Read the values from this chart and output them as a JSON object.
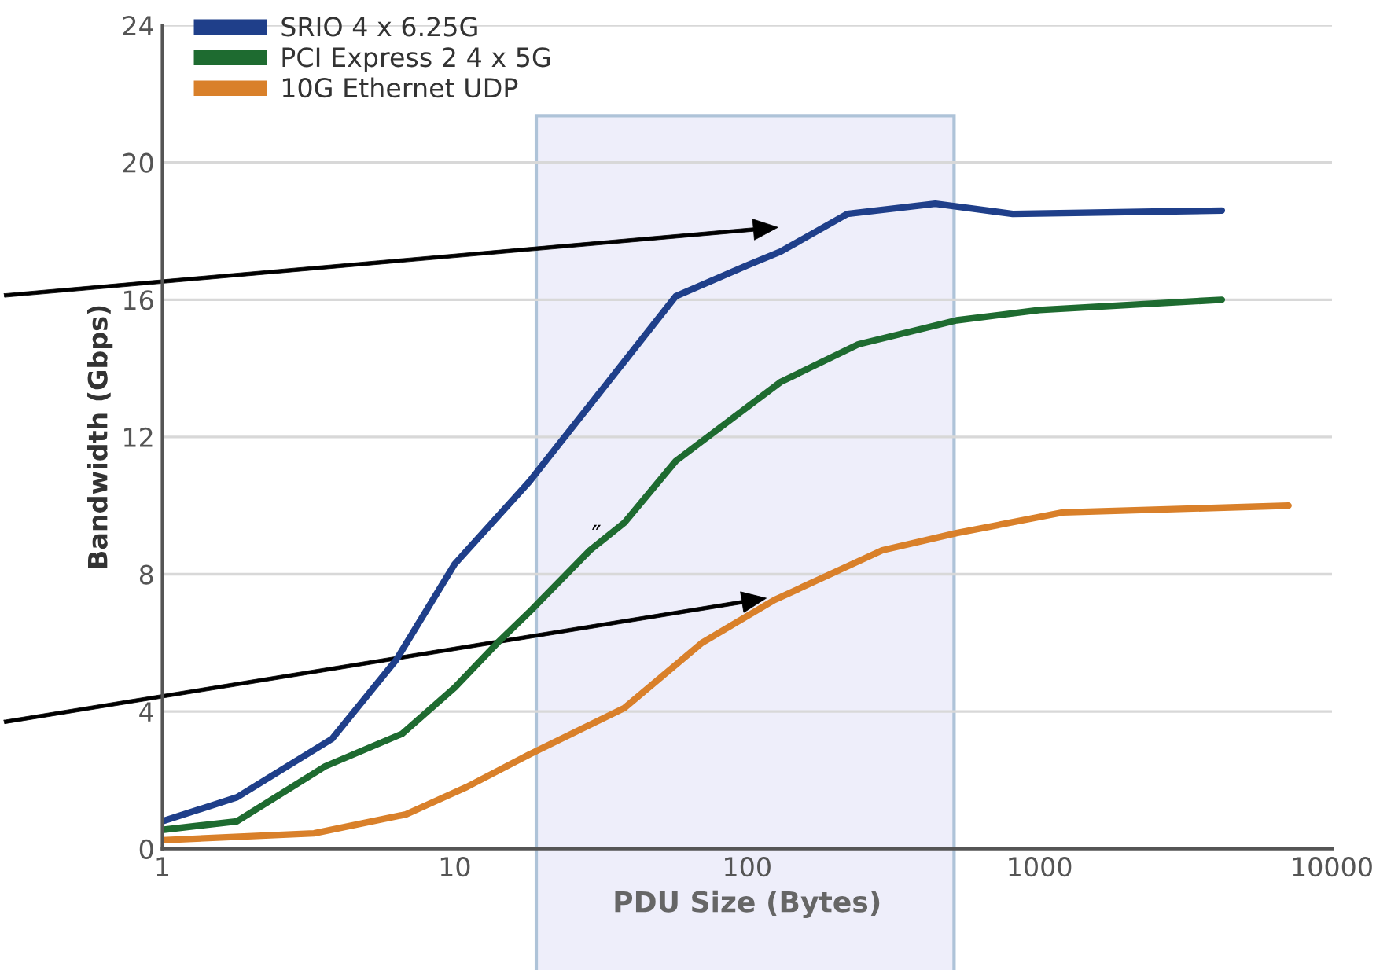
{
  "chart_data": {
    "type": "line",
    "xlabel": "PDU Size (Bytes)",
    "ylabel": "Bandwidth (Gbps)",
    "log": "x",
    "xlim": [
      1,
      10000
    ],
    "xticks": [
      1,
      10,
      100,
      1000,
      10000
    ],
    "ylim": [
      0,
      24
    ],
    "yticks": [
      0,
      4,
      8,
      12,
      16,
      20,
      24
    ],
    "grid": "y",
    "legend": "top left",
    "marker": "none",
    "line_style": "solid",
    "series": [
      {
        "name": "SRIO 4 x 6.25G",
        "color": "#1f3f8a",
        "x": [
          1,
          1.8,
          3.8,
          6.3,
          10,
          18,
          38,
          57,
          100,
          130,
          220,
          440,
          810,
          4200
        ],
        "values": [
          0.8,
          1.5,
          3.2,
          5.5,
          8.3,
          10.7,
          14.2,
          16.1,
          17.0,
          17.4,
          18.5,
          18.8,
          18.5,
          18.6
        ]
      },
      {
        "name": "PCI Express 2 4 x 5G",
        "color": "#1e6b30",
        "x": [
          1,
          1.8,
          3.6,
          6.6,
          10,
          14,
          18,
          29,
          38,
          57,
          130,
          240,
          520,
          1000,
          4200
        ],
        "values": [
          0.55,
          0.8,
          2.4,
          3.35,
          4.7,
          6.0,
          6.9,
          8.7,
          9.5,
          11.3,
          13.6,
          14.7,
          15.4,
          15.7,
          16.0
        ]
      },
      {
        "name": "10G Ethernet UDP",
        "color": "#d9802a",
        "x": [
          1,
          3.3,
          6.8,
          11,
          18,
          38,
          70,
          124,
          290,
          520,
          1200,
          7100
        ],
        "values": [
          0.25,
          0.45,
          1.0,
          1.8,
          2.75,
          4.1,
          6.0,
          7.25,
          8.7,
          9.2,
          9.8,
          10.0
        ]
      }
    ],
    "bands": [
      {
        "axis": "x",
        "from": 19,
        "to": 510,
        "color": "#e4e4f8"
      }
    ],
    "annotations": [
      "″"
    ]
  }
}
